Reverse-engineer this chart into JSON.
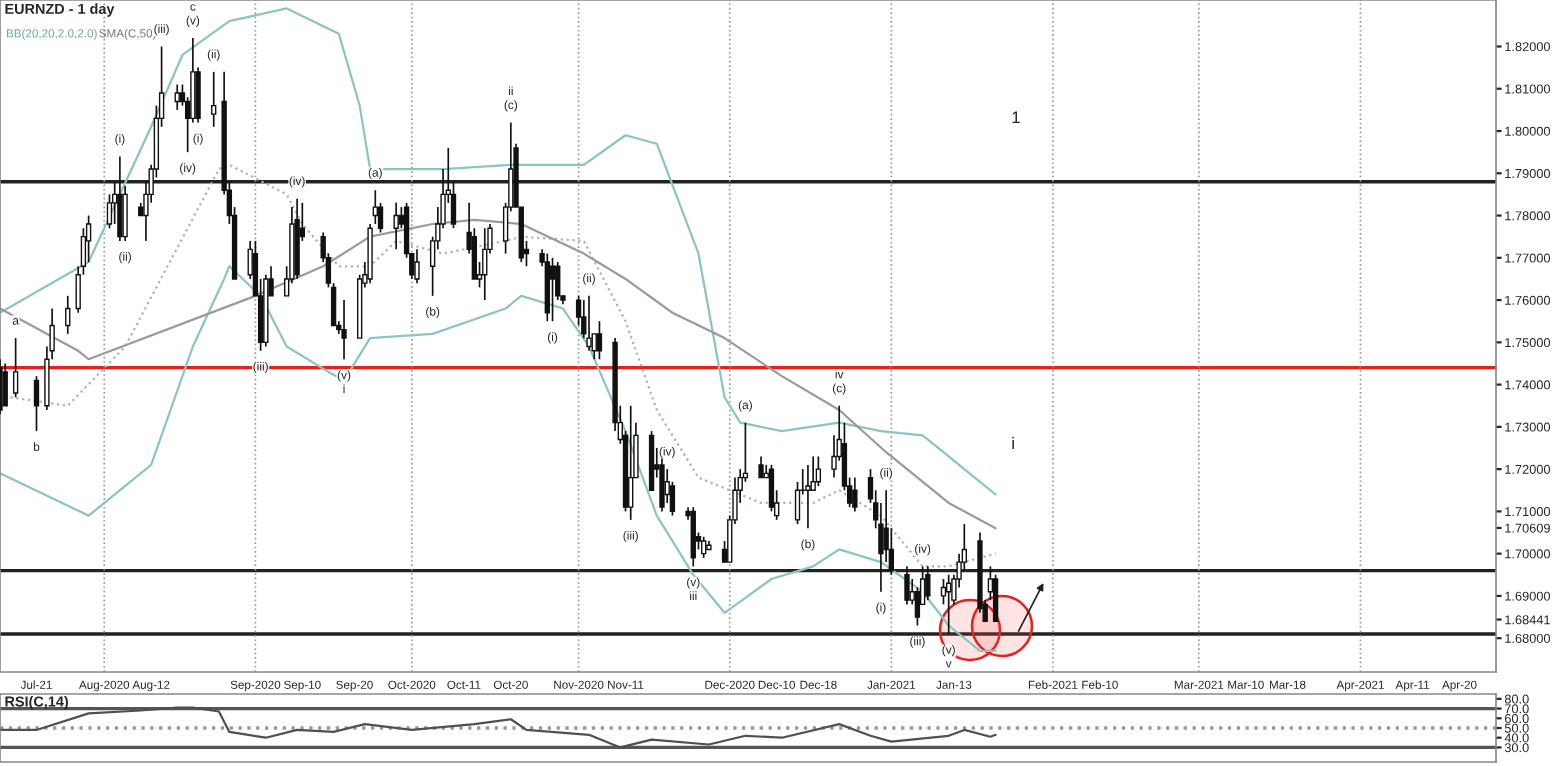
{
  "chart_data": [
    {
      "type": "candlestick",
      "title": "EURNZD - 1 day",
      "x": [
        "2020-07-14",
        "2020-07-15",
        "2020-07-17",
        "2020-07-21",
        "2020-07-23",
        "2020-07-24",
        "2020-07-27",
        "2020-07-29",
        "2020-07-30",
        "2020-07-31",
        "2020-08-04",
        "2020-08-05",
        "2020-08-06",
        "2020-08-07",
        "2020-08-10",
        "2020-08-11",
        "2020-08-12",
        "2020-08-13",
        "2020-08-14",
        "2020-08-17",
        "2020-08-18",
        "2020-08-19",
        "2020-08-20",
        "2020-08-21",
        "2020-08-24",
        "2020-08-26",
        "2020-08-27",
        "2020-08-28",
        "2020-08-31",
        "2020-09-01",
        "2020-09-02",
        "2020-09-03",
        "2020-09-04",
        "2020-09-07",
        "2020-09-08",
        "2020-09-09",
        "2020-09-10",
        "2020-09-14",
        "2020-09-15",
        "2020-09-16",
        "2020-09-17",
        "2020-09-18",
        "2020-09-21",
        "2020-09-22",
        "2020-09-23",
        "2020-09-24",
        "2020-09-25",
        "2020-09-28",
        "2020-09-29",
        "2020-09-30",
        "2020-10-01",
        "2020-10-02",
        "2020-10-05",
        "2020-10-06",
        "2020-10-07",
        "2020-10-08",
        "2020-10-09",
        "2020-10-12",
        "2020-10-13",
        "2020-10-14",
        "2020-10-15",
        "2020-10-16",
        "2020-10-19",
        "2020-10-20",
        "2020-10-21",
        "2020-10-22",
        "2020-10-23",
        "2020-10-26",
        "2020-10-27",
        "2020-10-28",
        "2020-10-29",
        "2020-10-30",
        "2020-11-02",
        "2020-11-03",
        "2020-11-04",
        "2020-11-05",
        "2020-11-06",
        "2020-11-09",
        "2020-11-10",
        "2020-11-11",
        "2020-11-12",
        "2020-11-13",
        "2020-11-16",
        "2020-11-17",
        "2020-11-18",
        "2020-11-19",
        "2020-11-20",
        "2020-11-23",
        "2020-11-24",
        "2020-11-25",
        "2020-11-26",
        "2020-11-27",
        "2020-11-30",
        "2020-12-01",
        "2020-12-02",
        "2020-12-03",
        "2020-12-04",
        "2020-12-07",
        "2020-12-08",
        "2020-12-09",
        "2020-12-10",
        "2020-12-14",
        "2020-12-15",
        "2020-12-16",
        "2020-12-17",
        "2020-12-18",
        "2020-12-21",
        "2020-12-22",
        "2020-12-23",
        "2020-12-24",
        "2020-12-25",
        "2020-12-28",
        "2020-12-29",
        "2020-12-30",
        "2020-12-31",
        "2021-01-01",
        "2021-01-04",
        "2021-01-05",
        "2021-01-06",
        "2021-01-07",
        "2021-01-08",
        "2021-01-11",
        "2021-01-12",
        "2021-01-13",
        "2021-01-14",
        "2021-01-15",
        "2021-01-18",
        "2021-01-19",
        "2021-01-20",
        "2021-01-21"
      ],
      "ohlc": [
        [
          1.744,
          1.746,
          1.733,
          1.734
        ],
        [
          1.743,
          1.745,
          1.735,
          1.735
        ],
        [
          1.738,
          1.751,
          1.737,
          1.743
        ],
        [
          1.741,
          1.742,
          1.729,
          1.735
        ],
        [
          1.735,
          1.749,
          1.734,
          1.746
        ],
        [
          1.748,
          1.758,
          1.746,
          1.754
        ],
        [
          1.754,
          1.761,
          1.752,
          1.758
        ],
        [
          1.758,
          1.768,
          1.757,
          1.766
        ],
        [
          1.768,
          1.777,
          1.766,
          1.775
        ],
        [
          1.774,
          1.78,
          1.769,
          1.778
        ],
        [
          1.778,
          1.785,
          1.777,
          1.783
        ],
        [
          1.783,
          1.788,
          1.778,
          1.785
        ],
        [
          1.785,
          1.794,
          1.774,
          1.775
        ],
        [
          1.775,
          1.787,
          1.774,
          1.785
        ],
        [
          1.782,
          1.783,
          1.78,
          1.78
        ],
        [
          1.78,
          1.788,
          1.774,
          1.785
        ],
        [
          1.785,
          1.792,
          1.783,
          1.791
        ],
        [
          1.791,
          1.806,
          1.789,
          1.803
        ],
        [
          1.803,
          1.82,
          1.801,
          1.809
        ],
        [
          1.807,
          1.811,
          1.805,
          1.809
        ],
        [
          1.809,
          1.811,
          1.806,
          1.807
        ],
        [
          1.807,
          1.808,
          1.795,
          1.803
        ],
        [
          1.803,
          1.822,
          1.802,
          1.814
        ],
        [
          1.814,
          1.815,
          1.802,
          1.803
        ],
        [
          1.804,
          1.814,
          1.801,
          1.806
        ],
        [
          1.807,
          1.814,
          1.785,
          1.786
        ],
        [
          1.786,
          1.788,
          1.778,
          1.78
        ],
        [
          1.78,
          1.782,
          1.765,
          1.765
        ],
        [
          1.766,
          1.774,
          1.765,
          1.772
        ],
        [
          1.771,
          1.774,
          1.761,
          1.761
        ],
        [
          1.761,
          1.765,
          1.748,
          1.75
        ],
        [
          1.75,
          1.766,
          1.749,
          1.765
        ],
        [
          1.765,
          1.768,
          1.761,
          1.761
        ],
        [
          1.761,
          1.768,
          1.761,
          1.765
        ],
        [
          1.765,
          1.782,
          1.764,
          1.778
        ],
        [
          1.779,
          1.784,
          1.765,
          1.766
        ],
        [
          1.777,
          1.783,
          1.774,
          1.775
        ],
        [
          1.775,
          1.776,
          1.769,
          1.77
        ],
        [
          1.77,
          1.771,
          1.763,
          1.764
        ],
        [
          1.763,
          1.764,
          1.754,
          1.754
        ],
        [
          1.754,
          1.755,
          1.752,
          1.753
        ],
        [
          1.753,
          1.76,
          1.746,
          1.751
        ],
        [
          1.751,
          1.766,
          1.751,
          1.765
        ],
        [
          1.764,
          1.769,
          1.763,
          1.766
        ],
        [
          1.765,
          1.778,
          1.764,
          1.777
        ],
        [
          1.78,
          1.786,
          1.778,
          1.782
        ],
        [
          1.782,
          1.783,
          1.776,
          1.777
        ],
        [
          1.777,
          1.783,
          1.772,
          1.78
        ],
        [
          1.78,
          1.782,
          1.777,
          1.778
        ],
        [
          1.782,
          1.783,
          1.77,
          1.771
        ],
        [
          1.771,
          1.771,
          1.765,
          1.766
        ],
        [
          1.765,
          1.772,
          1.764,
          1.769
        ],
        [
          1.768,
          1.775,
          1.761,
          1.774
        ],
        [
          1.774,
          1.782,
          1.772,
          1.778
        ],
        [
          1.778,
          1.791,
          1.777,
          1.785
        ],
        [
          1.785,
          1.796,
          1.783,
          1.786
        ],
        [
          1.785,
          1.788,
          1.777,
          1.778
        ],
        [
          1.776,
          1.783,
          1.771,
          1.772
        ],
        [
          1.775,
          1.777,
          1.765,
          1.765
        ],
        [
          1.765,
          1.769,
          1.763,
          1.766
        ],
        [
          1.766,
          1.777,
          1.76,
          1.772
        ],
        [
          1.772,
          1.778,
          1.771,
          1.777
        ],
        [
          1.774,
          1.783,
          1.771,
          1.782
        ],
        [
          1.782,
          1.802,
          1.781,
          1.791
        ],
        [
          1.796,
          1.797,
          1.782,
          1.782
        ],
        [
          1.782,
          1.782,
          1.769,
          1.77
        ],
        [
          1.772,
          1.774,
          1.768,
          1.771
        ],
        [
          1.771,
          1.772,
          1.768,
          1.769
        ],
        [
          1.769,
          1.771,
          1.755,
          1.757
        ],
        [
          1.768,
          1.77,
          1.755,
          1.765
        ],
        [
          1.768,
          1.769,
          1.76,
          1.761
        ],
        [
          1.761,
          1.761,
          1.759,
          1.76
        ],
        [
          1.76,
          1.761,
          1.754,
          1.756
        ],
        [
          1.756,
          1.76,
          1.751,
          1.752
        ],
        [
          1.749,
          1.761,
          1.748,
          1.751
        ],
        [
          1.748,
          1.752,
          1.746,
          1.752
        ],
        [
          1.752,
          1.755,
          1.746,
          1.748
        ],
        [
          1.75,
          1.751,
          1.729,
          1.731
        ],
        [
          1.727,
          1.735,
          1.726,
          1.731
        ],
        [
          1.728,
          1.729,
          1.71,
          1.711
        ],
        [
          1.711,
          1.735,
          1.708,
          1.718
        ],
        [
          1.718,
          1.731,
          1.718,
          1.728
        ],
        [
          1.728,
          1.729,
          1.715,
          1.715
        ],
        [
          1.721,
          1.725,
          1.718,
          1.72
        ],
        [
          1.721,
          1.723,
          1.71,
          1.711
        ],
        [
          1.714,
          1.72,
          1.712,
          1.717
        ],
        [
          1.716,
          1.717,
          1.709,
          1.71
        ],
        [
          1.71,
          1.711,
          1.708,
          1.709
        ],
        [
          1.71,
          1.711,
          1.697,
          1.699
        ],
        [
          1.704,
          1.705,
          1.701,
          1.703
        ],
        [
          1.7,
          1.704,
          1.699,
          1.703
        ],
        [
          1.701,
          1.703,
          1.701,
          1.702
        ],
        [
          1.701,
          1.703,
          1.698,
          1.698
        ],
        [
          1.698,
          1.709,
          1.698,
          1.708
        ],
        [
          1.708,
          1.718,
          1.707,
          1.715
        ],
        [
          1.715,
          1.72,
          1.712,
          1.718
        ],
        [
          1.718,
          1.731,
          1.717,
          1.719
        ],
        [
          1.721,
          1.723,
          1.718,
          1.718
        ],
        [
          1.718,
          1.721,
          1.718,
          1.719
        ],
        [
          1.72,
          1.721,
          1.71,
          1.711
        ],
        [
          1.709,
          1.715,
          1.708,
          1.712
        ],
        [
          1.708,
          1.717,
          1.707,
          1.715
        ],
        [
          1.715,
          1.72,
          1.714,
          1.715
        ],
        [
          1.715,
          1.721,
          1.706,
          1.716
        ],
        [
          1.715,
          1.723,
          1.715,
          1.717
        ],
        [
          1.717,
          1.723,
          1.716,
          1.72
        ],
        [
          1.72,
          1.728,
          1.718,
          1.723
        ],
        [
          1.723,
          1.735,
          1.722,
          1.727
        ],
        [
          1.726,
          1.731,
          1.715,
          1.716
        ],
        [
          1.716,
          1.718,
          1.711,
          1.712
        ],
        [
          1.715,
          1.718,
          1.71,
          1.711
        ],
        [
          1.718,
          1.72,
          1.712,
          1.713
        ],
        [
          1.712,
          1.715,
          1.706,
          1.708
        ],
        [
          1.707,
          1.712,
          1.691,
          1.7
        ],
        [
          1.706,
          1.715,
          1.698,
          1.701
        ],
        [
          1.701,
          1.706,
          1.695,
          1.696
        ],
        [
          1.695,
          1.697,
          1.688,
          1.689
        ],
        [
          1.689,
          1.694,
          1.688,
          1.691
        ],
        [
          1.691,
          1.692,
          1.683,
          1.685
        ],
        [
          1.688,
          1.697,
          1.688,
          1.694
        ],
        [
          1.695,
          1.697,
          1.689,
          1.69
        ],
        [
          1.69,
          1.694,
          1.688,
          1.692
        ],
        [
          1.691,
          1.695,
          1.681,
          1.693
        ],
        [
          1.689,
          1.695,
          1.688,
          1.694
        ],
        [
          1.694,
          1.7,
          1.692,
          1.698
        ],
        [
          1.698,
          1.707,
          1.696,
          1.701
        ],
        [
          1.703,
          1.705,
          1.686,
          1.687
        ],
        [
          1.688,
          1.689,
          1.684,
          1.684
        ],
        [
          1.691,
          1.697,
          1.689,
          1.694
        ],
        [
          1.694,
          1.695,
          1.684,
          1.684
        ]
      ],
      "series": [
        {
          "type": "line",
          "color": "#8cc4c4",
          "line_style": "solid",
          "x": [
            "2020-07-14",
            "2020-07-31",
            "2020-08-12",
            "2020-08-18",
            "2020-08-27",
            "2020-09-07",
            "2020-09-17",
            "2020-09-21",
            "2020-09-23",
            "2020-10-07",
            "2020-10-20",
            "2020-11-03",
            "2020-11-11",
            "2020-11-17",
            "2020-11-25",
            "2020-11-30",
            "2020-12-03",
            "2020-12-11",
            "2020-12-22",
            "2020-12-30",
            "2021-01-07",
            "2021-01-12",
            "2021-01-18",
            "2021-01-21"
          ],
          "values": [
            1.757,
            1.769,
            1.801,
            1.818,
            1.826,
            1.829,
            1.823,
            1.806,
            1.791,
            1.791,
            1.792,
            1.792,
            1.799,
            1.797,
            1.771,
            1.737,
            1.731,
            1.729,
            1.731,
            1.729,
            1.728,
            1.723,
            1.717,
            1.714
          ]
        },
        {
          "type": "line",
          "color": "#8cc4c4",
          "line_style": "solid",
          "x": [
            "2020-07-14",
            "2020-07-31",
            "2020-08-12",
            "2020-08-20",
            "2020-08-26",
            "2020-08-27",
            "2020-09-02",
            "2020-09-07",
            "2020-09-15",
            "2020-09-18",
            "2020-09-23",
            "2020-10-05",
            "2020-10-19",
            "2020-10-22",
            "2020-10-30",
            "2020-11-04",
            "2020-11-11",
            "2020-11-17",
            "2020-11-24",
            "2020-11-30",
            "2020-12-09",
            "2020-12-17",
            "2020-12-22",
            "2020-12-30",
            "2021-01-07",
            "2021-01-12",
            "2021-01-18",
            "2021-01-21"
          ],
          "values": [
            1.719,
            1.709,
            1.721,
            1.749,
            1.765,
            1.768,
            1.761,
            1.749,
            1.743,
            1.741,
            1.751,
            1.752,
            1.758,
            1.761,
            1.758,
            1.749,
            1.729,
            1.709,
            1.695,
            1.686,
            1.694,
            1.697,
            1.701,
            1.698,
            1.691,
            1.683,
            1.677,
            1.677
          ]
        },
        {
          "type": "line",
          "color": "#9fb8b8",
          "line_style": "dotted",
          "x": [
            "2020-07-16",
            "2020-07-27",
            "2020-08-07",
            "2020-08-25",
            "2020-08-27",
            "2020-09-07",
            "2020-09-10",
            "2020-09-17",
            "2020-09-23",
            "2020-09-28",
            "2020-10-07",
            "2020-10-19",
            "2020-10-22",
            "2020-11-03",
            "2020-11-11",
            "2020-11-17",
            "2020-11-25",
            "2020-12-07",
            "2020-12-17",
            "2020-12-22",
            "2020-12-30",
            "2021-01-07",
            "2021-01-12",
            "2021-01-21"
          ],
          "values": [
            1.737,
            1.735,
            1.749,
            1.791,
            1.792,
            1.785,
            1.778,
            1.768,
            1.768,
            1.774,
            1.771,
            1.774,
            1.775,
            1.774,
            1.755,
            1.734,
            1.718,
            1.712,
            1.712,
            1.715,
            1.709,
            1.697,
            1.697,
            1.7
          ]
        },
        {
          "type": "line",
          "color": "#9a9a9a",
          "line_style": "solid",
          "x": [
            "2020-07-14",
            "2020-07-29",
            "2020-07-31",
            "2020-09-01",
            "2020-09-14",
            "2020-09-23",
            "2020-10-05",
            "2020-10-13",
            "2020-10-22",
            "2020-11-03",
            "2020-11-11",
            "2020-11-20",
            "2020-11-30",
            "2020-12-11",
            "2020-12-22",
            "2020-12-31",
            "2021-01-12",
            "2021-01-21"
          ],
          "values": [
            1.758,
            1.748,
            1.746,
            1.761,
            1.768,
            1.775,
            1.778,
            1.779,
            1.778,
            1.771,
            1.765,
            1.757,
            1.751,
            1.742,
            1.734,
            1.724,
            1.712,
            1.706
          ]
        }
      ],
      "xlim": [
        "2020-07-14",
        "2021-04-27"
      ],
      "xticks": [
        {
          "value": "2020-07-21",
          "label": "Jul-21"
        },
        {
          "value": "2020-08-03",
          "label": "Aug-2020"
        },
        {
          "value": "2020-08-12",
          "label": "Aug-12"
        },
        {
          "value": "2020-09-01",
          "label": "Sep-2020"
        },
        {
          "value": "2020-09-10",
          "label": "Sep-10"
        },
        {
          "value": "2020-09-20",
          "label": "Sep-20"
        },
        {
          "value": "2020-10-01",
          "label": "Oct-2020"
        },
        {
          "value": "2020-10-11",
          "label": "Oct-11"
        },
        {
          "value": "2020-10-20",
          "label": "Oct-20"
        },
        {
          "value": "2020-11-02",
          "label": "Nov-2020"
        },
        {
          "value": "2020-11-11",
          "label": "Nov-11"
        },
        {
          "value": "2020-12-01",
          "label": "Dec-2020"
        },
        {
          "value": "2020-12-10",
          "label": "Dec-10"
        },
        {
          "value": "2020-12-18",
          "label": "Dec-18"
        },
        {
          "value": "2021-01-01",
          "label": "Jan-2021"
        },
        {
          "value": "2021-01-13",
          "label": "Jan-13"
        },
        {
          "value": "2021-02-01",
          "label": "Feb-2021"
        },
        {
          "value": "2021-02-10",
          "label": "Feb-10"
        },
        {
          "value": "2021-03-01",
          "label": "Mar-2021"
        },
        {
          "value": "2021-03-10",
          "label": "Mar-10"
        },
        {
          "value": "2021-03-18",
          "label": "Mar-18"
        },
        {
          "value": "2021-04-01",
          "label": "Apr-2021"
        },
        {
          "value": "2021-04-11",
          "label": "Apr-11"
        },
        {
          "value": "2021-04-20",
          "label": "Apr-20"
        }
      ],
      "ylim": [
        1.672,
        1.831
      ],
      "yticks": [
        {
          "value": 1.68,
          "label": "1.68000"
        },
        {
          "value": 1.69,
          "label": "1.69000"
        },
        {
          "value": 1.7,
          "label": "1.70000"
        },
        {
          "value": 1.71,
          "label": "1.71000"
        },
        {
          "value": 1.72,
          "label": "1.72000"
        },
        {
          "value": 1.73,
          "label": "1.73000"
        },
        {
          "value": 1.74,
          "label": "1.74000"
        },
        {
          "value": 1.75,
          "label": "1.75000"
        },
        {
          "value": 1.76,
          "label": "1.76000"
        },
        {
          "value": 1.77,
          "label": "1.77000"
        },
        {
          "value": 1.78,
          "label": "1.78000"
        },
        {
          "value": 1.79,
          "label": "1.79000"
        },
        {
          "value": 1.8,
          "label": "1.80000"
        },
        {
          "value": 1.81,
          "label": "1.81000"
        },
        {
          "value": 1.82,
          "label": "1.82000"
        },
        {
          "value": 1.70609,
          "label": "1.70609"
        },
        {
          "value": 1.68441,
          "label": "1.68441"
        }
      ],
      "ref_lines": [
        {
          "axis": "y",
          "value": 1.788,
          "color": "#222222",
          "line_style": "solid"
        },
        {
          "axis": "y",
          "value": 1.744,
          "color": "#e8201c",
          "line_style": "solid"
        },
        {
          "axis": "y",
          "value": 1.696,
          "color": "#222222",
          "line_style": "solid"
        },
        {
          "axis": "y",
          "value": 1.681,
          "color": "#222222",
          "line_style": "solid"
        },
        {
          "axis": "x",
          "value": "2020-08-03",
          "color": "#999999",
          "line_style": "dotted"
        },
        {
          "axis": "x",
          "value": "2020-09-01",
          "color": "#999999",
          "line_style": "dotted"
        },
        {
          "axis": "x",
          "value": "2020-10-01",
          "color": "#999999",
          "line_style": "dotted"
        },
        {
          "axis": "x",
          "value": "2020-11-02",
          "color": "#999999",
          "line_style": "dotted"
        },
        {
          "axis": "x",
          "value": "2020-12-01",
          "color": "#999999",
          "line_style": "dotted"
        },
        {
          "axis": "x",
          "value": "2021-01-01",
          "color": "#999999",
          "line_style": "dotted"
        },
        {
          "axis": "x",
          "value": "2021-02-01",
          "color": "#999999",
          "line_style": "dotted"
        },
        {
          "axis": "x",
          "value": "2021-03-01",
          "color": "#999999",
          "line_style": "dotted"
        },
        {
          "axis": "x",
          "value": "2021-04-01",
          "color": "#999999",
          "line_style": "dotted"
        }
      ],
      "annotations": [
        "BB(20,20,2.0,2.0)",
        "SMA(C,50)",
        "1",
        "i",
        {
          "text": "a",
          "x": "2020-07-17",
          "y": 1.751
        },
        {
          "text": "b",
          "x": "2020-07-21",
          "y": 1.729
        },
        {
          "text": "(i)",
          "x": "2020-08-06",
          "y": 1.794
        },
        {
          "text": "(ii)",
          "x": "2020-08-07",
          "y": 1.774
        },
        {
          "text": "(iii)",
          "x": "2020-08-14",
          "y": 1.82
        },
        {
          "text": "(iv)",
          "x": "2020-08-19",
          "y": 1.795
        },
        {
          "text": "(v)",
          "x": "2020-08-20",
          "y": 1.822
        },
        {
          "text": "c",
          "x": "2020-08-20",
          "y": 1.822
        },
        {
          "text": "(i)",
          "x": "2020-08-21",
          "y": 1.802
        },
        {
          "text": "(ii)",
          "x": "2020-08-24",
          "y": 1.814
        },
        {
          "text": "(iii)",
          "x": "2020-09-02",
          "y": 1.748
        },
        {
          "text": "(iv)",
          "x": "2020-09-09",
          "y": 1.784
        },
        {
          "text": "(v)",
          "x": "2020-09-18",
          "y": 1.746
        },
        {
          "text": "i",
          "x": "2020-09-18",
          "y": 1.746
        },
        {
          "text": "(a)",
          "x": "2020-09-24",
          "y": 1.786
        },
        {
          "text": "(b)",
          "x": "2020-10-05",
          "y": 1.761
        },
        {
          "text": "(c)",
          "x": "2020-10-20",
          "y": 1.802
        },
        {
          "text": "ii",
          "x": "2020-10-20",
          "y": 1.802
        },
        {
          "text": "(i)",
          "x": "2020-10-28",
          "y": 1.755
        },
        {
          "text": "(ii)",
          "x": "2020-11-04",
          "y": 1.761
        },
        {
          "text": "(iii)",
          "x": "2020-11-12",
          "y": 1.708
        },
        {
          "text": "(iv)",
          "x": "2020-11-19",
          "y": 1.72
        },
        {
          "text": "(v)",
          "x": "2020-11-24",
          "y": 1.697
        },
        {
          "text": "iii",
          "x": "2020-11-24",
          "y": 1.697
        },
        {
          "text": "(a)",
          "x": "2020-12-04",
          "y": 1.731
        },
        {
          "text": "(b)",
          "x": "2020-12-16",
          "y": 1.706
        },
        {
          "text": "(c)",
          "x": "2020-12-22",
          "y": 1.735
        },
        {
          "text": "iv",
          "x": "2020-12-22",
          "y": 1.735
        },
        {
          "text": "(ii)",
          "x": "2020-12-31",
          "y": 1.715
        },
        {
          "text": "(i)",
          "x": "2020-12-30",
          "y": 1.691
        },
        {
          "text": "(iv)",
          "x": "2021-01-07",
          "y": 1.697
        },
        {
          "text": "(iii)",
          "x": "2021-01-06",
          "y": 1.683
        },
        {
          "text": "(v)",
          "x": "2021-01-12",
          "y": 1.681
        },
        {
          "text": "v",
          "x": "2021-01-12",
          "y": 1.681
        }
      ]
    },
    {
      "type": "line",
      "title": "RSI(C,14)",
      "series": [
        {
          "color": "#505050",
          "x": [
            "2020-07-14",
            "2020-07-21",
            "2020-07-31",
            "2020-08-10",
            "2020-08-17",
            "2020-08-20",
            "2020-08-25",
            "2020-08-27",
            "2020-09-03",
            "2020-09-09",
            "2020-09-16",
            "2020-09-22",
            "2020-10-01",
            "2020-10-13",
            "2020-10-20",
            "2020-10-23",
            "2020-11-04",
            "2020-11-10",
            "2020-11-16",
            "2020-11-27",
            "2020-12-04",
            "2020-12-11",
            "2020-12-22",
            "2020-12-28",
            "2021-01-01",
            "2021-01-12",
            "2021-01-15",
            "2021-01-20",
            "2021-01-21"
          ],
          "values": [
            48,
            48,
            65,
            68,
            71,
            71,
            67,
            46,
            40,
            48,
            46,
            54,
            48,
            54,
            59,
            48,
            43,
            30,
            38,
            33,
            42,
            40,
            54,
            42,
            36,
            42,
            48,
            41,
            43
          ]
        }
      ],
      "xlim": [
        "2020-07-14",
        "2021-04-27"
      ],
      "ylim": [
        15,
        85
      ],
      "yticks": [
        {
          "value": 30,
          "label": "30.0"
        },
        {
          "value": 40,
          "label": "40.0"
        },
        {
          "value": 50,
          "label": "50.0"
        },
        {
          "value": 60,
          "label": "60.0"
        },
        {
          "value": 70,
          "label": "70.0"
        },
        {
          "value": 80,
          "label": "80.0"
        }
      ],
      "tick_labels": "y",
      "ref_lines": [
        {
          "axis": "y",
          "value": 70,
          "color": "#555555",
          "line_style": "solid"
        },
        {
          "axis": "y",
          "value": 30,
          "color": "#555555",
          "line_style": "solid"
        },
        {
          "axis": "y",
          "value": 50,
          "color": "#999999",
          "line_style": "dotted"
        }
      ]
    }
  ]
}
